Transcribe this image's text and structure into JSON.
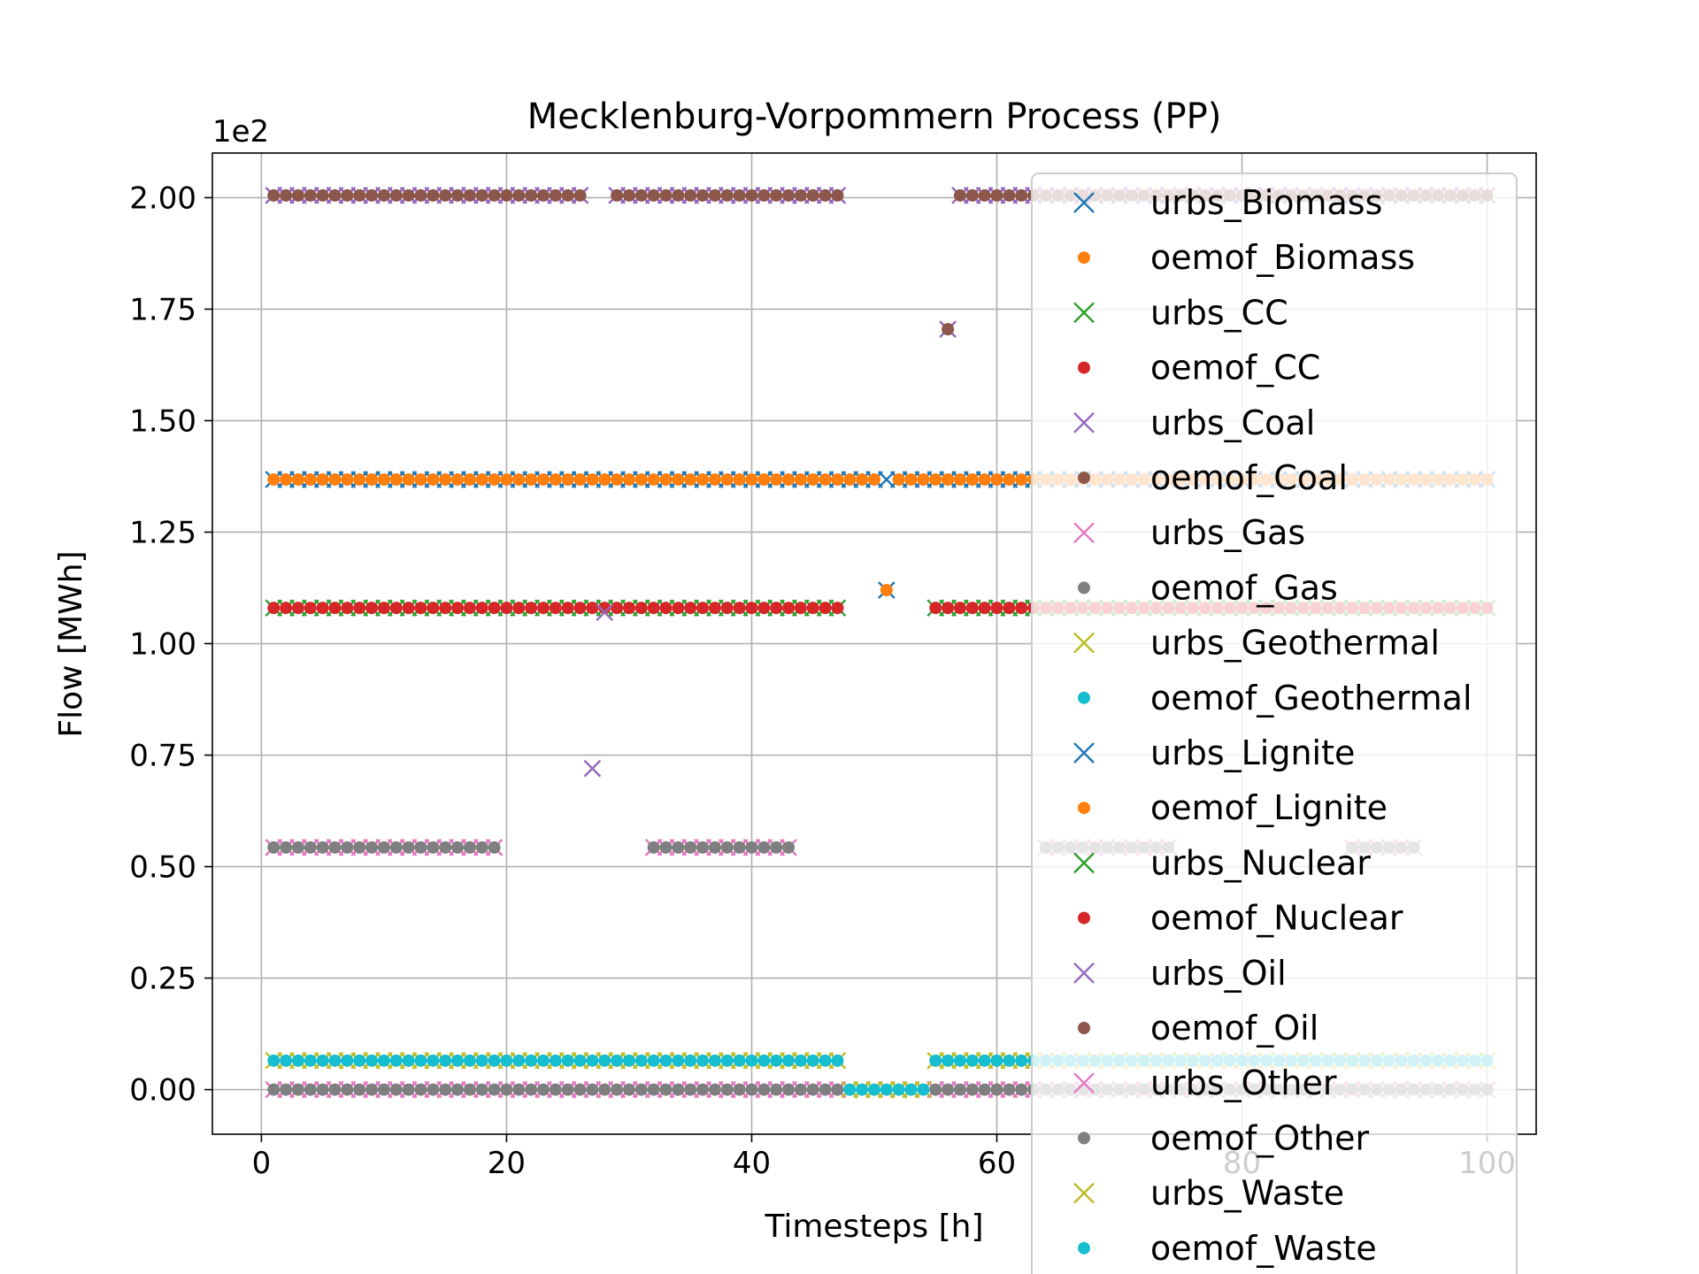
{
  "chart_data": {
    "type": "scatter",
    "title": "Mecklenburg-Vorpommern Process (PP)",
    "xlabel": "Timesteps [h]",
    "ylabel": "Flow [MWh]",
    "y_scale_label": "1e2",
    "xlim": [
      -4,
      104
    ],
    "ylim": [
      -0.1,
      2.1
    ],
    "x_ticks": [
      0,
      20,
      40,
      60,
      80,
      100
    ],
    "x_tick_labels": [
      "0",
      "20",
      "40",
      "60",
      "80",
      "100"
    ],
    "y_ticks": [
      0.0,
      0.25,
      0.5,
      0.75,
      1.0,
      1.25,
      1.5,
      1.75,
      2.0
    ],
    "y_tick_labels": [
      "0.00",
      "0.25",
      "0.50",
      "0.75",
      "1.00",
      "1.25",
      "1.50",
      "1.75",
      "2.00"
    ],
    "grid": true,
    "legend_position": "right",
    "series": [
      {
        "name": "urbs_Biomass",
        "marker": "x",
        "color": "#1f77b4",
        "segments": [
          [
            1,
            51,
            1.368
          ],
          [
            52,
            100,
            1.368
          ]
        ],
        "points": [
          [
            51,
            1.12
          ]
        ]
      },
      {
        "name": "oemof_Biomass",
        "marker": "o",
        "color": "#ff7f0e",
        "segments": [
          [
            1,
            50,
            1.368
          ],
          [
            52,
            100,
            1.368
          ]
        ],
        "points": [
          [
            51,
            1.12
          ]
        ]
      },
      {
        "name": "urbs_CC",
        "marker": "x",
        "color": "#2ca02c",
        "segments": [
          [
            1,
            47,
            1.08
          ],
          [
            55,
            100,
            1.08
          ]
        ],
        "points": []
      },
      {
        "name": "oemof_CC",
        "marker": "o",
        "color": "#d62728",
        "segments": [
          [
            1,
            47,
            1.08
          ],
          [
            55,
            100,
            1.08
          ]
        ],
        "points": []
      },
      {
        "name": "urbs_Coal",
        "marker": "x",
        "color": "#9467bd",
        "segments": [
          [
            1,
            26,
            2.005
          ],
          [
            29,
            47,
            2.005
          ],
          [
            57,
            100,
            2.005
          ]
        ],
        "points": [
          [
            27,
            0.72
          ],
          [
            28,
            1.07
          ],
          [
            56,
            1.705
          ]
        ]
      },
      {
        "name": "oemof_Coal",
        "marker": "o",
        "color": "#8c564b",
        "segments": [
          [
            1,
            26,
            2.005
          ],
          [
            29,
            47,
            2.005
          ],
          [
            57,
            100,
            2.005
          ]
        ],
        "points": [
          [
            56,
            1.705
          ]
        ]
      },
      {
        "name": "urbs_Gas",
        "marker": "x",
        "color": "#e377c2",
        "segments": [
          [
            1,
            19,
            0.543
          ],
          [
            32,
            43,
            0.543
          ],
          [
            64,
            74,
            0.543
          ],
          [
            89,
            94,
            0.543
          ]
        ],
        "points": []
      },
      {
        "name": "oemof_Gas",
        "marker": "o",
        "color": "#7f7f7f",
        "segments": [
          [
            1,
            19,
            0.543
          ],
          [
            32,
            43,
            0.543
          ],
          [
            64,
            74,
            0.543
          ],
          [
            89,
            94,
            0.543
          ]
        ],
        "points": []
      },
      {
        "name": "urbs_Geothermal",
        "marker": "x",
        "color": "#bcbd22",
        "segments": [
          [
            1,
            47,
            0.065
          ],
          [
            55,
            100,
            0.065
          ]
        ],
        "points": []
      },
      {
        "name": "oemof_Geothermal",
        "marker": "o",
        "color": "#17becf",
        "segments": [
          [
            1,
            47,
            0.065
          ],
          [
            55,
            100,
            0.065
          ]
        ],
        "points": []
      },
      {
        "name": "urbs_Lignite",
        "marker": "x",
        "color": "#1f77b4",
        "segments": [],
        "points": []
      },
      {
        "name": "oemof_Lignite",
        "marker": "o",
        "color": "#ff7f0e",
        "segments": [],
        "points": []
      },
      {
        "name": "urbs_Nuclear",
        "marker": "x",
        "color": "#2ca02c",
        "segments": [],
        "points": []
      },
      {
        "name": "oemof_Nuclear",
        "marker": "o",
        "color": "#d62728",
        "segments": [],
        "points": []
      },
      {
        "name": "urbs_Oil",
        "marker": "x",
        "color": "#9467bd",
        "segments": [],
        "points": []
      },
      {
        "name": "oemof_Oil",
        "marker": "o",
        "color": "#8c564b",
        "segments": [],
        "points": []
      },
      {
        "name": "urbs_Other",
        "marker": "x",
        "color": "#e377c2",
        "segments": [
          [
            1,
            100,
            0.0
          ]
        ],
        "points": []
      },
      {
        "name": "oemof_Other",
        "marker": "o",
        "color": "#7f7f7f",
        "segments": [
          [
            1,
            47,
            0.0
          ],
          [
            55,
            100,
            0.0
          ]
        ],
        "points": []
      },
      {
        "name": "urbs_Waste",
        "marker": "x",
        "color": "#bcbd22",
        "segments": [
          [
            48,
            54,
            0.0
          ]
        ],
        "points": []
      },
      {
        "name": "oemof_Waste",
        "marker": "o",
        "color": "#17becf",
        "segments": [
          [
            48,
            54,
            0.0
          ]
        ],
        "points": []
      }
    ]
  }
}
